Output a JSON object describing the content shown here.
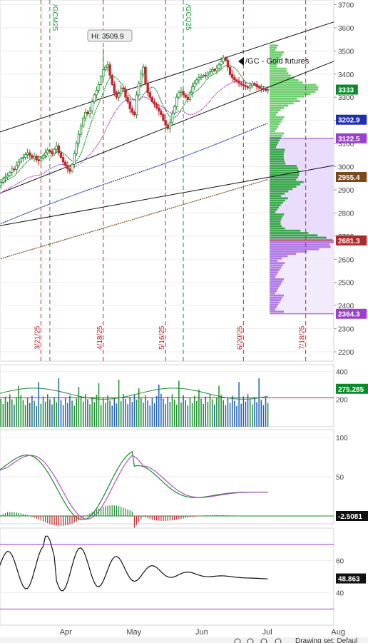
{
  "chart_data": [
    {
      "type": "candlestick",
      "symbol_label": "/GC - Gold futures",
      "high_callout": "Hi: 3509.9",
      "ylim": [
        2160,
        3720
      ],
      "yticks": [
        2200,
        2300,
        2400,
        2500,
        2600,
        2700,
        2800,
        2900,
        3000,
        3100,
        3200,
        3300,
        3400,
        3500,
        3600,
        3700
      ],
      "price_tags": [
        {
          "label": "3333",
          "value": 3333,
          "color": "#0a8a2a"
        },
        {
          "label": "3202.9",
          "value": 3202.9,
          "color": "#1f2fb0"
        },
        {
          "label": "3122.5",
          "value": 3122.5,
          "color": "#9b3fd0"
        },
        {
          "label": "2955.4",
          "value": 2955.4,
          "color": "#7a4a1e"
        },
        {
          "label": "2681.3",
          "value": 2681.3,
          "color": "#b02a2a"
        },
        {
          "label": "2364.3",
          "value": 2364.3,
          "color": "#9b3fd0"
        }
      ],
      "event_markers": [
        {
          "label": "/GCM25",
          "day": 24,
          "color": "#1c9a3c"
        },
        {
          "label": "/GCQ25",
          "day": 84,
          "color": "#1c9a3c"
        }
      ],
      "expiration_markers": [
        {
          "label": "3/21/25",
          "day": 20
        },
        {
          "label": "4/18/25",
          "day": 48
        },
        {
          "label": "5/16/25",
          "day": 76
        },
        {
          "label": "6/20/25",
          "day": 111
        },
        {
          "label": "7/18/25",
          "day": 139
        }
      ],
      "month_labels": [
        {
          "label": "Apr",
          "day": 31
        },
        {
          "label": "May",
          "day": 61
        },
        {
          "label": "Jun",
          "day": 92
        },
        {
          "label": "Jul",
          "day": 122
        },
        {
          "label": "Aug",
          "day": 153
        }
      ],
      "closes": [
        2918,
        2932,
        2948,
        2955,
        2962,
        2975,
        2990,
        2988,
        3005,
        3020,
        3035,
        3040,
        3052,
        3060,
        3048,
        3038,
        3045,
        3030,
        3025,
        3035,
        3050,
        3060,
        3072,
        3065,
        3055,
        3075,
        3090,
        3060,
        3040,
        3020,
        3005,
        2990,
        2980,
        3010,
        3055,
        3102,
        3140,
        3175,
        3210,
        3235,
        3228,
        3240,
        3280,
        3310,
        3330,
        3355,
        3390,
        3420,
        3430,
        3440,
        3395,
        3355,
        3320,
        3300,
        3315,
        3340,
        3335,
        3300,
        3280,
        3250,
        3235,
        3225,
        3310,
        3360,
        3400,
        3430,
        3360,
        3320,
        3300,
        3280,
        3270,
        3255,
        3240,
        3225,
        3200,
        3180,
        3165,
        3190,
        3230,
        3260,
        3300,
        3320,
        3325,
        3310,
        3300,
        3290,
        3320,
        3345,
        3360,
        3375,
        3385,
        3390,
        3395,
        3392,
        3405,
        3410,
        3420,
        3415,
        3425,
        3440,
        3455,
        3470,
        3460,
        3430,
        3398,
        3385,
        3375,
        3370,
        3360,
        3355,
        3350,
        3345,
        3340,
        3350,
        3360,
        3355,
        3345,
        3340,
        3337,
        3335,
        3330,
        3333
      ],
      "volume_lookback": 200
    },
    {
      "type": "bar",
      "panel": "volume",
      "ylim": [
        0,
        450
      ],
      "yticks": [
        200,
        400
      ],
      "tag": "275.285",
      "reference_level": 210
    },
    {
      "type": "line",
      "panel": "stochastic",
      "ylim": [
        -10,
        110
      ],
      "yticks": [
        50,
        100
      ],
      "tag": "-2.5081"
    },
    {
      "type": "line",
      "panel": "rsi",
      "ylim": [
        20,
        80
      ],
      "yticks": [
        40,
        60
      ],
      "overbought": 70,
      "oversold": 30,
      "tag": "48.863"
    }
  ],
  "footer": {
    "drawing_text": "Drawing set: Defaul"
  },
  "colors": {
    "up": "#1a8c2c",
    "down": "#c0272d",
    "ma_fast": "#1f8a2a",
    "ma_mid": "#b050c8",
    "ma_slow": "#1f2fb0",
    "ma_long": "#7a4a1e"
  }
}
